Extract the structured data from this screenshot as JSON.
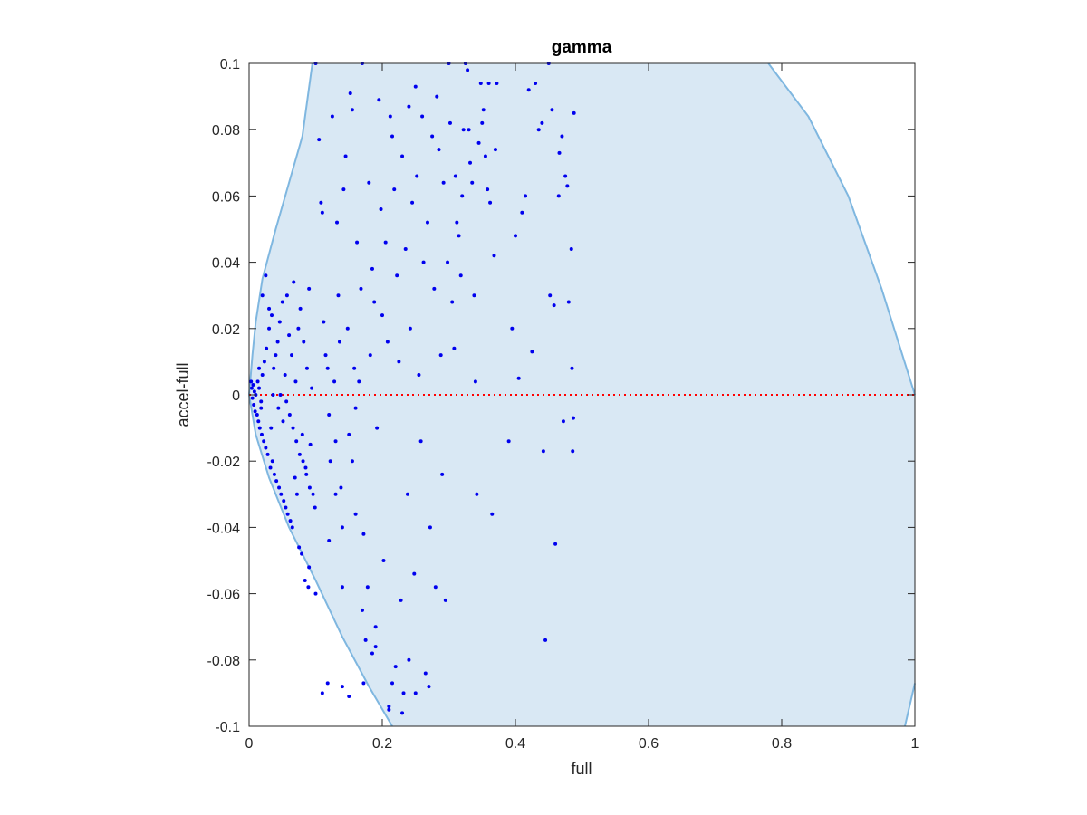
{
  "chart_data": {
    "type": "scatter",
    "title": "gamma",
    "xlabel": "full",
    "ylabel": "accel-full",
    "xlim": [
      0,
      1
    ],
    "ylim": [
      -0.1,
      0.1
    ],
    "x_ticks": [
      "0",
      "0.2",
      "0.4",
      "0.6",
      "0.8",
      "1"
    ],
    "y_ticks": [
      "-0.1",
      "-0.08",
      "-0.06",
      "-0.04",
      "-0.02",
      "0",
      "0.02",
      "0.04",
      "0.06",
      "0.08",
      "0.1"
    ],
    "reference_line": {
      "y": 0,
      "style": "dotted",
      "color": "#ff0000"
    },
    "region": {
      "color_fill": "#d9e8f4",
      "color_edge": "#7fb7e0",
      "left_boundary": [
        [
          0.0,
          0.0
        ],
        [
          0.005,
          0.012
        ],
        [
          0.01,
          0.022
        ],
        [
          0.02,
          0.035
        ],
        [
          0.04,
          0.05
        ],
        [
          0.06,
          0.064
        ],
        [
          0.08,
          0.078
        ],
        [
          0.095,
          0.1
        ]
      ],
      "right_boundary_upper": [
        [
          0.78,
          0.1
        ],
        [
          0.84,
          0.084
        ],
        [
          0.9,
          0.06
        ],
        [
          0.95,
          0.032
        ],
        [
          1.0,
          0.0
        ]
      ],
      "right_boundary_lower": [
        [
          0.985,
          -0.1
        ],
        [
          1.0,
          -0.087
        ]
      ],
      "lower_left_boundary": [
        [
          0.0,
          0.0
        ],
        [
          0.01,
          -0.012
        ],
        [
          0.03,
          -0.025
        ],
        [
          0.06,
          -0.04
        ],
        [
          0.1,
          -0.056
        ],
        [
          0.14,
          -0.073
        ],
        [
          0.18,
          -0.088
        ],
        [
          0.215,
          -0.1
        ]
      ]
    },
    "marker_color": "#0000ee",
    "points": [
      [
        0.003,
        0.004
      ],
      [
        0.004,
        0.002
      ],
      [
        0.005,
        -0.001
      ],
      [
        0.006,
        0.003
      ],
      [
        0.007,
        -0.003
      ],
      [
        0.008,
        0.001
      ],
      [
        0.009,
        -0.005
      ],
      [
        0.01,
        0.0
      ],
      [
        0.012,
        -0.006
      ],
      [
        0.013,
        0.004
      ],
      [
        0.014,
        -0.008
      ],
      [
        0.015,
        0.002
      ],
      [
        0.016,
        -0.01
      ],
      [
        0.018,
        -0.002
      ],
      [
        0.019,
        -0.012
      ],
      [
        0.02,
        0.006
      ],
      [
        0.022,
        -0.014
      ],
      [
        0.023,
        0.01
      ],
      [
        0.025,
        -0.016
      ],
      [
        0.026,
        0.014
      ],
      [
        0.028,
        -0.018
      ],
      [
        0.03,
        0.02
      ],
      [
        0.032,
        -0.022
      ],
      [
        0.034,
        0.024
      ],
      [
        0.035,
        -0.02
      ],
      [
        0.037,
        0.008
      ],
      [
        0.038,
        -0.024
      ],
      [
        0.04,
        0.012
      ],
      [
        0.041,
        -0.026
      ],
      [
        0.043,
        0.016
      ],
      [
        0.045,
        -0.028
      ],
      [
        0.046,
        0.022
      ],
      [
        0.048,
        -0.03
      ],
      [
        0.05,
        0.028
      ],
      [
        0.052,
        -0.032
      ],
      [
        0.054,
        0.006
      ],
      [
        0.055,
        -0.034
      ],
      [
        0.057,
        0.03
      ],
      [
        0.058,
        -0.036
      ],
      [
        0.06,
        0.018
      ],
      [
        0.062,
        -0.038
      ],
      [
        0.064,
        0.012
      ],
      [
        0.065,
        -0.04
      ],
      [
        0.067,
        0.034
      ],
      [
        0.069,
        -0.025
      ],
      [
        0.07,
        0.004
      ],
      [
        0.072,
        -0.03
      ],
      [
        0.074,
        0.02
      ],
      [
        0.075,
        -0.046
      ],
      [
        0.077,
        0.026
      ],
      [
        0.079,
        -0.048
      ],
      [
        0.08,
        -0.012
      ],
      [
        0.082,
        0.016
      ],
      [
        0.084,
        -0.056
      ],
      [
        0.085,
        -0.022
      ],
      [
        0.087,
        0.008
      ],
      [
        0.089,
        -0.058
      ],
      [
        0.09,
        0.032
      ],
      [
        0.092,
        -0.015
      ],
      [
        0.094,
        0.002
      ],
      [
        0.02,
        0.03
      ],
      [
        0.025,
        0.036
      ],
      [
        0.03,
        0.026
      ],
      [
        0.015,
        0.008
      ],
      [
        0.018,
        -0.004
      ],
      [
        0.033,
        -0.01
      ],
      [
        0.036,
        0.0
      ],
      [
        0.044,
        -0.004
      ],
      [
        0.047,
        0.0
      ],
      [
        0.051,
        -0.008
      ],
      [
        0.056,
        -0.002
      ],
      [
        0.061,
        -0.006
      ],
      [
        0.066,
        -0.01
      ],
      [
        0.071,
        -0.014
      ],
      [
        0.076,
        -0.018
      ],
      [
        0.081,
        -0.02
      ],
      [
        0.086,
        -0.024
      ],
      [
        0.091,
        -0.028
      ],
      [
        0.096,
        -0.03
      ],
      [
        0.099,
        -0.034
      ],
      [
        0.1,
        0.1
      ],
      [
        0.105,
        0.077
      ],
      [
        0.108,
        0.058
      ],
      [
        0.11,
        0.055
      ],
      [
        0.112,
        0.022
      ],
      [
        0.115,
        0.012
      ],
      [
        0.118,
        0.008
      ],
      [
        0.12,
        -0.006
      ],
      [
        0.122,
        -0.02
      ],
      [
        0.125,
        0.084
      ],
      [
        0.128,
        0.004
      ],
      [
        0.13,
        -0.014
      ],
      [
        0.132,
        0.052
      ],
      [
        0.134,
        0.03
      ],
      [
        0.136,
        0.016
      ],
      [
        0.138,
        -0.028
      ],
      [
        0.14,
        -0.04
      ],
      [
        0.142,
        0.062
      ],
      [
        0.145,
        0.072
      ],
      [
        0.148,
        0.02
      ],
      [
        0.15,
        -0.012
      ],
      [
        0.152,
        0.091
      ],
      [
        0.155,
        0.086
      ],
      [
        0.158,
        0.008
      ],
      [
        0.16,
        -0.036
      ],
      [
        0.162,
        0.046
      ],
      [
        0.165,
        0.004
      ],
      [
        0.168,
        0.032
      ],
      [
        0.17,
        0.1
      ],
      [
        0.172,
        -0.042
      ],
      [
        0.175,
        -0.074
      ],
      [
        0.178,
        -0.058
      ],
      [
        0.18,
        0.064
      ],
      [
        0.182,
        0.012
      ],
      [
        0.185,
        0.038
      ],
      [
        0.188,
        0.028
      ],
      [
        0.19,
        -0.076
      ],
      [
        0.192,
        -0.01
      ],
      [
        0.195,
        0.089
      ],
      [
        0.198,
        0.056
      ],
      [
        0.2,
        0.024
      ],
      [
        0.202,
        -0.05
      ],
      [
        0.205,
        0.046
      ],
      [
        0.208,
        0.016
      ],
      [
        0.21,
        -0.094
      ],
      [
        0.212,
        0.084
      ],
      [
        0.215,
        0.078
      ],
      [
        0.218,
        0.062
      ],
      [
        0.22,
        -0.082
      ],
      [
        0.222,
        0.036
      ],
      [
        0.225,
        0.01
      ],
      [
        0.228,
        -0.062
      ],
      [
        0.23,
        0.072
      ],
      [
        0.232,
        -0.09
      ],
      [
        0.235,
        0.044
      ],
      [
        0.238,
        -0.03
      ],
      [
        0.24,
        0.087
      ],
      [
        0.242,
        0.02
      ],
      [
        0.245,
        0.058
      ],
      [
        0.248,
        -0.054
      ],
      [
        0.25,
        0.093
      ],
      [
        0.252,
        0.066
      ],
      [
        0.255,
        0.006
      ],
      [
        0.258,
        -0.014
      ],
      [
        0.26,
        0.084
      ],
      [
        0.262,
        0.04
      ],
      [
        0.265,
        -0.084
      ],
      [
        0.268,
        0.052
      ],
      [
        0.27,
        -0.088
      ],
      [
        0.272,
        -0.04
      ],
      [
        0.275,
        0.078
      ],
      [
        0.278,
        0.032
      ],
      [
        0.28,
        -0.058
      ],
      [
        0.282,
        0.09
      ],
      [
        0.285,
        0.074
      ],
      [
        0.288,
        0.012
      ],
      [
        0.29,
        -0.024
      ],
      [
        0.292,
        0.064
      ],
      [
        0.295,
        -0.062
      ],
      [
        0.298,
        0.04
      ],
      [
        0.3,
        0.1
      ],
      [
        0.302,
        0.082
      ],
      [
        0.305,
        0.028
      ],
      [
        0.308,
        0.014
      ],
      [
        0.31,
        0.066
      ],
      [
        0.312,
        0.052
      ],
      [
        0.315,
        0.048
      ],
      [
        0.318,
        0.036
      ],
      [
        0.32,
        0.06
      ],
      [
        0.322,
        0.08
      ],
      [
        0.325,
        0.1
      ],
      [
        0.328,
        0.098
      ],
      [
        0.33,
        0.08
      ],
      [
        0.332,
        0.07
      ],
      [
        0.335,
        0.064
      ],
      [
        0.338,
        0.03
      ],
      [
        0.34,
        0.004
      ],
      [
        0.342,
        -0.03
      ],
      [
        0.345,
        0.076
      ],
      [
        0.348,
        0.094
      ],
      [
        0.35,
        0.082
      ],
      [
        0.352,
        0.086
      ],
      [
        0.355,
        0.072
      ],
      [
        0.358,
        0.062
      ],
      [
        0.36,
        0.094
      ],
      [
        0.362,
        0.058
      ],
      [
        0.365,
        -0.036
      ],
      [
        0.368,
        0.042
      ],
      [
        0.37,
        0.074
      ],
      [
        0.372,
        0.094
      ],
      [
        0.39,
        -0.014
      ],
      [
        0.395,
        0.02
      ],
      [
        0.4,
        0.048
      ],
      [
        0.405,
        0.005
      ],
      [
        0.41,
        0.055
      ],
      [
        0.415,
        0.06
      ],
      [
        0.42,
        0.092
      ],
      [
        0.425,
        0.013
      ],
      [
        0.43,
        0.094
      ],
      [
        0.435,
        0.08
      ],
      [
        0.44,
        0.082
      ],
      [
        0.445,
        -0.074
      ],
      [
        0.45,
        0.1
      ],
      [
        0.455,
        0.086
      ],
      [
        0.46,
        -0.045
      ],
      [
        0.465,
        0.06
      ],
      [
        0.47,
        0.078
      ],
      [
        0.475,
        0.066
      ],
      [
        0.48,
        0.028
      ],
      [
        0.484,
        0.044
      ],
      [
        0.485,
        0.008
      ],
      [
        0.486,
        -0.017
      ],
      [
        0.487,
        -0.007
      ],
      [
        0.488,
        0.085
      ],
      [
        0.478,
        0.063
      ],
      [
        0.472,
        -0.008
      ],
      [
        0.466,
        0.073
      ],
      [
        0.458,
        0.027
      ],
      [
        0.452,
        0.03
      ],
      [
        0.442,
        -0.017
      ],
      [
        0.11,
        -0.09
      ],
      [
        0.118,
        -0.087
      ],
      [
        0.14,
        -0.088
      ],
      [
        0.15,
        -0.091
      ],
      [
        0.172,
        -0.087
      ],
      [
        0.215,
        -0.087
      ],
      [
        0.23,
        -0.096
      ],
      [
        0.24,
        -0.08
      ],
      [
        0.25,
        -0.09
      ],
      [
        0.21,
        -0.095
      ],
      [
        0.185,
        -0.078
      ],
      [
        0.19,
        -0.07
      ],
      [
        0.17,
        -0.065
      ],
      [
        0.14,
        -0.058
      ],
      [
        0.1,
        -0.06
      ],
      [
        0.09,
        -0.052
      ],
      [
        0.12,
        -0.044
      ],
      [
        0.13,
        -0.03
      ],
      [
        0.155,
        -0.02
      ],
      [
        0.16,
        -0.004
      ]
    ]
  }
}
